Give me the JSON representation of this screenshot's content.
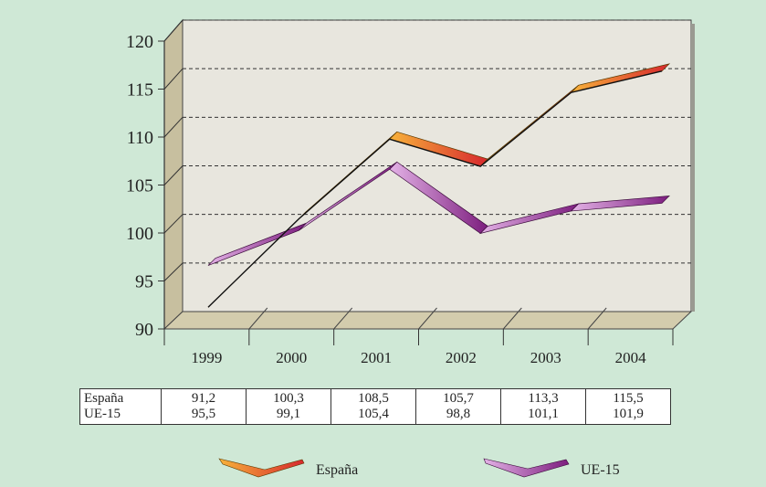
{
  "chart_data": {
    "type": "line",
    "categories": [
      "1999",
      "2000",
      "2001",
      "2002",
      "2003",
      "2004"
    ],
    "series": [
      {
        "name": "España",
        "values": [
          91.2,
          100.3,
          108.5,
          105.7,
          113.3,
          115.5
        ]
      },
      {
        "name": "UE-15",
        "values": [
          95.5,
          99.1,
          105.4,
          98.8,
          101.1,
          101.9
        ]
      }
    ],
    "ylim": [
      90,
      120
    ],
    "yticks": [
      "90",
      "95",
      "100",
      "105",
      "110",
      "115",
      "120"
    ],
    "grid": true,
    "legend": "bottom",
    "table": {
      "rows": [
        {
          "label": "España",
          "values": [
            "91,2",
            "100,3",
            "108,5",
            "105,7",
            "113,3",
            "115,5"
          ]
        },
        {
          "label": "UE-15",
          "values": [
            "95,5",
            "99,1",
            "105,4",
            "98,8",
            "101,1",
            "101,9"
          ]
        }
      ]
    },
    "colors": {
      "background": "#cfe8d6",
      "plot_wall": "#e8e6de",
      "side_wall": "#c7bf9f",
      "floor": "#d3ccad",
      "espana_light": "#f7b23a",
      "espana_dark": "#d7282e",
      "ue15_light": "#e3b2e6",
      "ue15_dark": "#7c1d7e"
    }
  }
}
